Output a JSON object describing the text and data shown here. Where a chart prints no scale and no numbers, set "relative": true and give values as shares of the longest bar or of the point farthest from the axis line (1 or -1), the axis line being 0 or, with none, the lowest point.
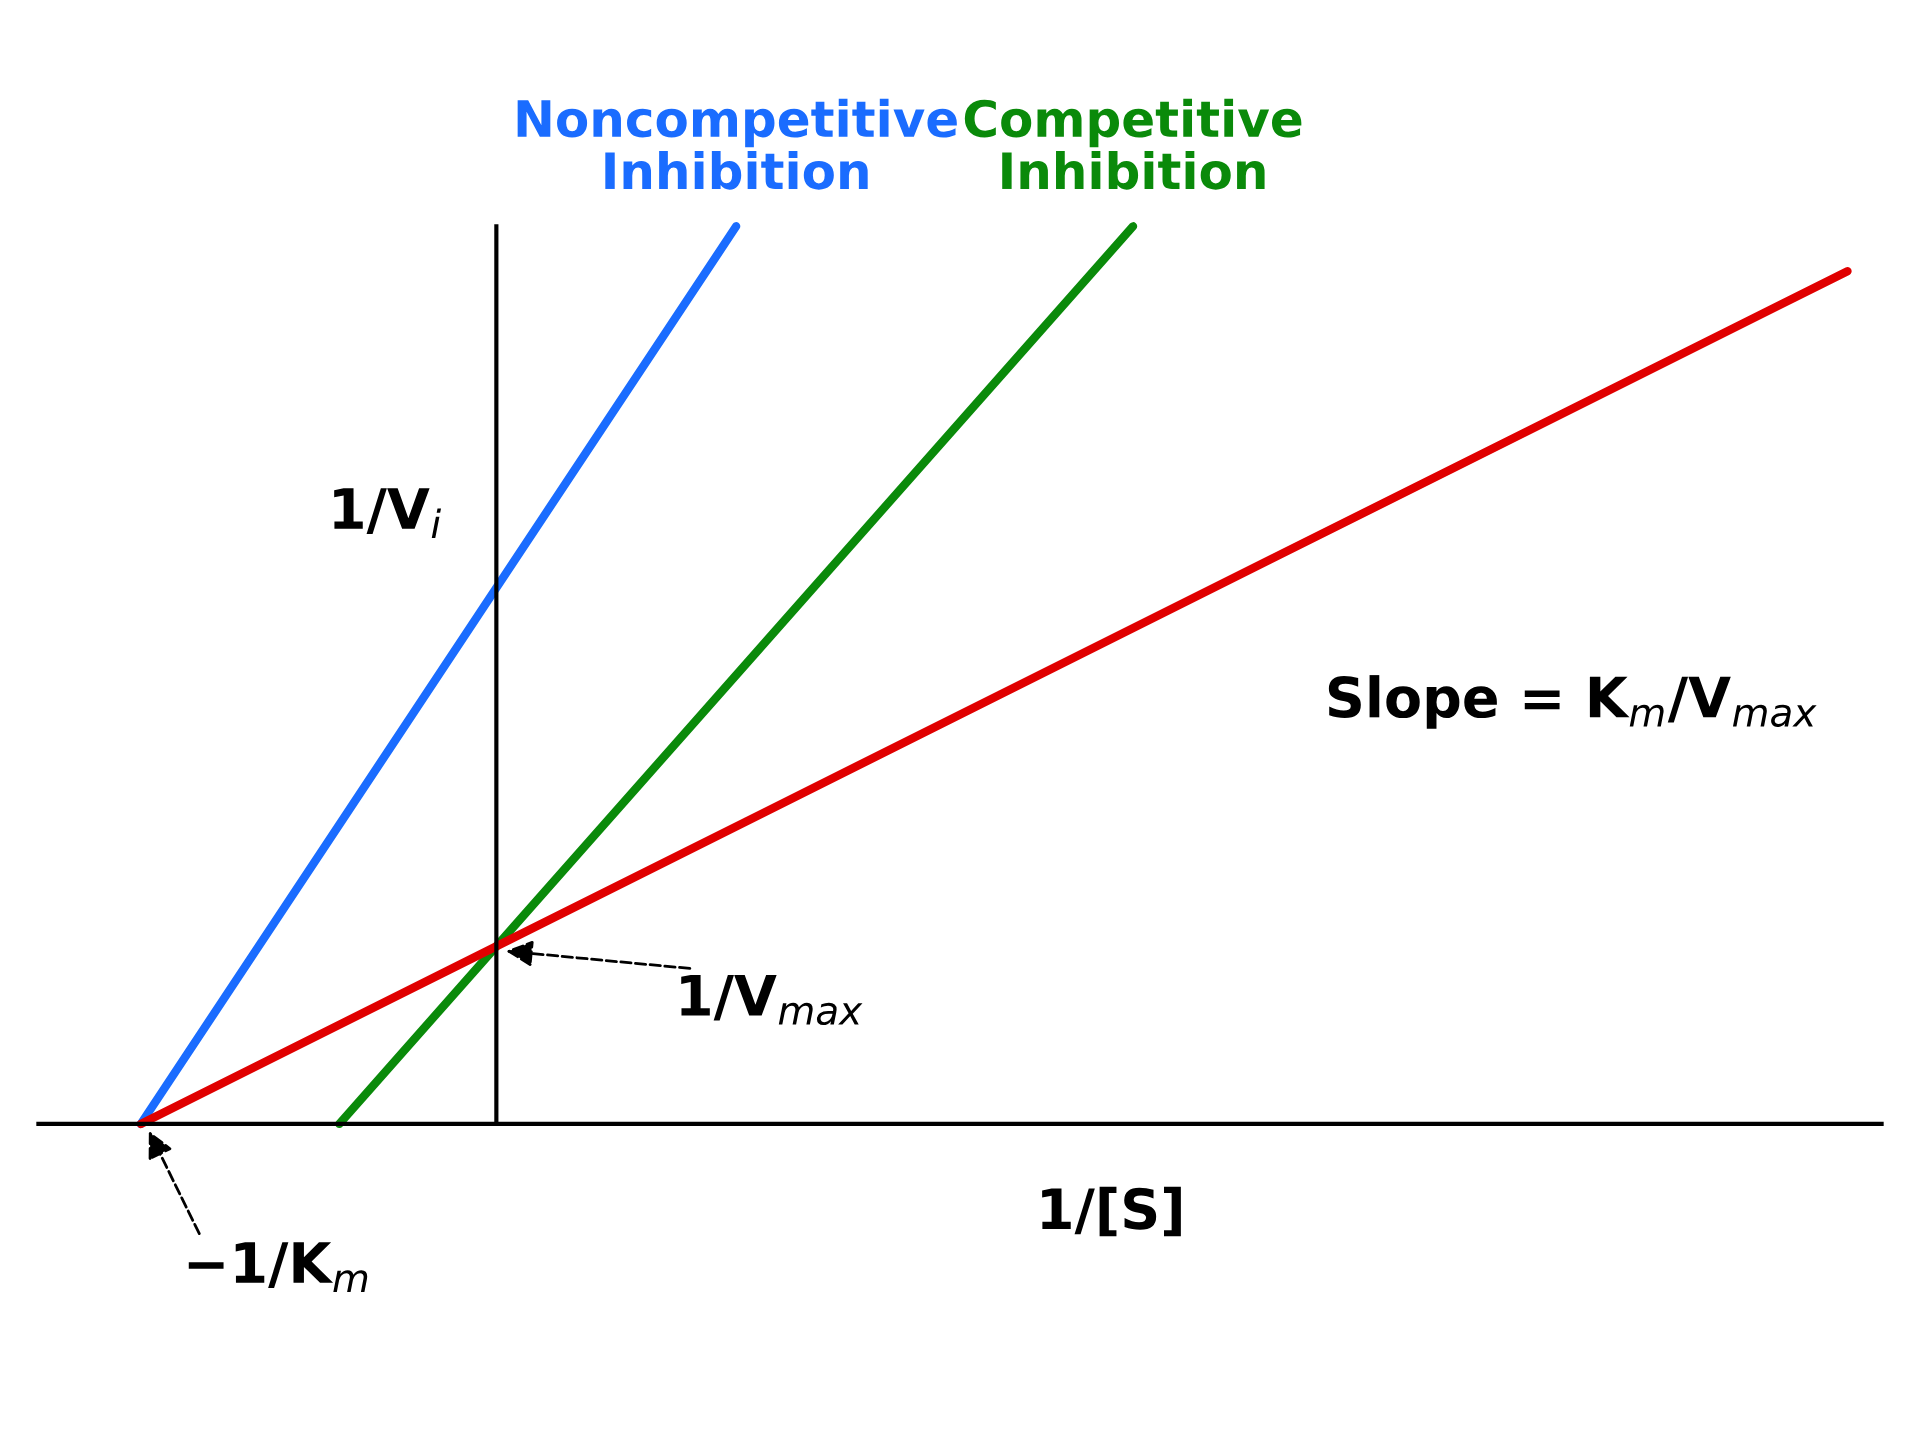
{
  "chart_data": {
    "type": "line",
    "relative": true,
    "xlabel": "1/[S]",
    "ylabel": "1/V$_{i}$",
    "legend": false,
    "marker": "none",
    "line_style": "solid",
    "categories": [
      null,
      null,
      null,
      null,
      null,
      null,
      null,
      null,
      null,
      null,
      null,
      null,
      null,
      null,
      null,
      null,
      null,
      null,
      null,
      null,
      null,
      null,
      null,
      null,
      null,
      null,
      null,
      null,
      null,
      null,
      null,
      null,
      null,
      null,
      null,
      null,
      null,
      null,
      null,
      null,
      null,
      null,
      null,
      null
    ],
    "series": [
      {
        "name": "Noncompetitive Inhibition",
        "color": "#1a6cff",
        "values": [
          0,
          null,
          null,
          null,
          null,
          null,
          null,
          null,
          null,
          null,
          null,
          null,
          null,
          null,
          null,
          1.0,
          null,
          null,
          null,
          null,
          null,
          null,
          null,
          null,
          null,
          null,
          null,
          null,
          null,
          null,
          null,
          null,
          null,
          null,
          null,
          null,
          null,
          null,
          null,
          null,
          null,
          null,
          null,
          null
        ]
      },
      {
        "name": "Competitive Inhibition",
        "color": "#0a8a0a",
        "values": [
          null,
          null,
          null,
          null,
          null,
          0,
          null,
          null,
          null,
          null,
          null,
          null,
          null,
          null,
          null,
          null,
          null,
          null,
          null,
          null,
          null,
          null,
          null,
          null,
          null,
          1.0,
          null,
          null,
          null,
          null,
          null,
          null,
          null,
          null,
          null,
          null,
          null,
          null,
          null,
          null,
          null,
          null,
          null,
          null
        ]
      },
      {
        "color": "#e00000",
        "values": [
          0,
          null,
          null,
          null,
          null,
          null,
          null,
          null,
          null,
          null,
          null,
          null,
          null,
          null,
          null,
          null,
          null,
          null,
          null,
          null,
          null,
          null,
          null,
          null,
          null,
          null,
          null,
          null,
          null,
          null,
          null,
          null,
          null,
          null,
          null,
          null,
          null,
          null,
          null,
          null,
          null,
          null,
          null,
          0.95
        ]
      }
    ],
    "annotations": [
      "1/V$_{max}$",
      "−1/K$_{m}$",
      "Slope = K$_{m}$/V$_{max}$"
    ]
  }
}
